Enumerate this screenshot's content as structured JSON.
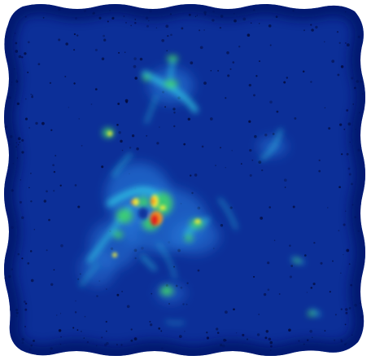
{
  "image": {
    "kind": "false-color intensity map",
    "colormap": "jet",
    "colors": {
      "background": "#ffffff",
      "field": "#0c2f98",
      "field_dark": "#05186a",
      "speckle": "#030a3a",
      "low": "#2a7fe0",
      "mid": "#2ecfe6",
      "high_green": "#3fd46a",
      "yellow": "#f2ef3a",
      "orange": "#f7931e",
      "peak": "#e01f1f"
    }
  }
}
